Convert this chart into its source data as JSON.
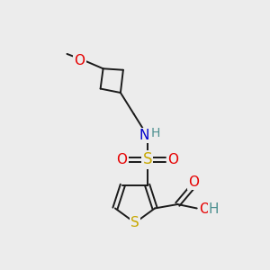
{
  "background_color": "#ececec",
  "bond_color": "#1a1a1a",
  "bond_width": 1.4,
  "atom_colors": {
    "S_thiophene": "#c8a800",
    "S_sulfonyl": "#c8a800",
    "O": "#e60000",
    "N": "#0000cc",
    "H_teal": "#4d9090",
    "C": "#1a1a1a"
  },
  "figsize": [
    3.0,
    3.0
  ],
  "dpi": 100,
  "xlim": [
    0,
    10
  ],
  "ylim": [
    0,
    10
  ]
}
